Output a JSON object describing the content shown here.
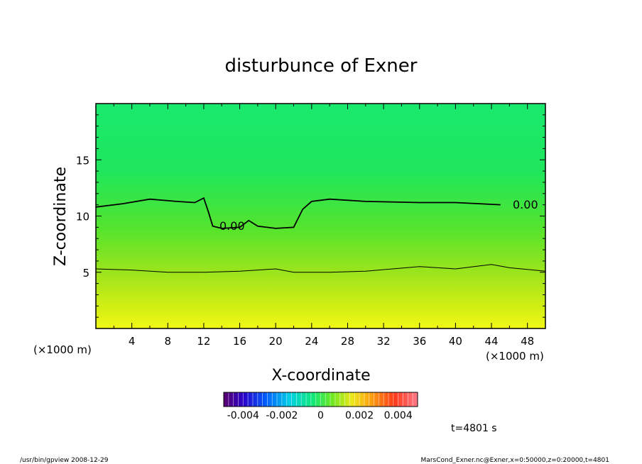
{
  "chart_data": {
    "type": "heatmap",
    "title": "disturbunce of Exner",
    "xlabel": "X-coordinate",
    "ylabel": "Z-coordinate",
    "x_unit": "(×1000 m)",
    "y_unit": "(×1000 m)",
    "xlim": [
      0,
      50
    ],
    "ylim": [
      0,
      20
    ],
    "x_ticks": [
      "4",
      "8",
      "12",
      "16",
      "20",
      "24",
      "28",
      "32",
      "36",
      "40",
      "44",
      "48"
    ],
    "y_ticks": [
      "5",
      "10",
      "15"
    ],
    "contour_label": "0.00",
    "contours": [
      {
        "level": "0.00",
        "x": [
          0,
          3,
          6,
          9,
          11,
          12,
          12.5,
          13,
          14,
          16,
          17,
          18,
          20,
          22,
          23,
          24,
          26,
          30,
          36,
          40,
          45
        ],
        "y": [
          10.8,
          11.1,
          11.5,
          11.3,
          11.2,
          11.6,
          10.4,
          9.1,
          8.9,
          9.0,
          9.6,
          9.1,
          8.9,
          9.0,
          10.6,
          11.3,
          11.5,
          11.3,
          11.2,
          11.2,
          11.0
        ]
      },
      {
        "level": "minor",
        "x": [
          0,
          4,
          8,
          12,
          16,
          18,
          20,
          22,
          26,
          30,
          36,
          40,
          44,
          46,
          50
        ],
        "y": [
          5.3,
          5.2,
          5.0,
          5.0,
          5.1,
          5.2,
          5.3,
          5.0,
          5.0,
          5.1,
          5.5,
          5.3,
          5.7,
          5.4,
          5.1
        ]
      }
    ],
    "colorbar": {
      "ticks": [
        "-0.004",
        "-0.002",
        "0",
        "0.002",
        "0.004"
      ],
      "range": [
        -0.005,
        0.005
      ]
    },
    "time_label": "t=4801 s"
  },
  "footer": {
    "left": "/usr/bin/gpview   2008-12-29",
    "right": "MarsCond_Exner.nc@Exner,x=0:50000,z=0:20000,t=4801"
  }
}
